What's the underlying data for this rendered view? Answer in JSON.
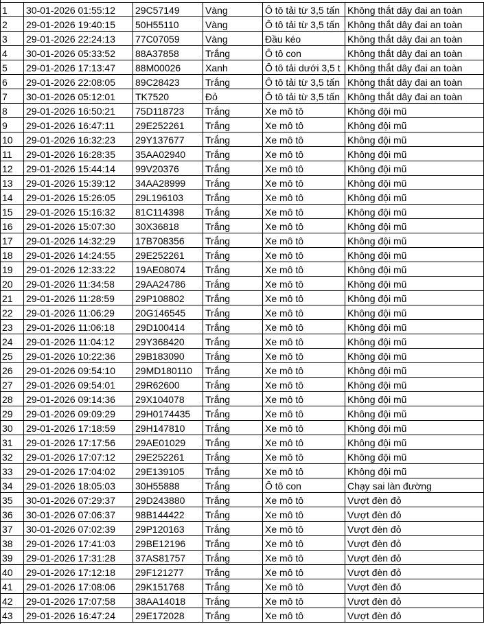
{
  "table": {
    "rows": [
      [
        "1",
        "30-01-2026 01:55:12",
        "29C57149",
        "Vàng",
        "Ô tô tải từ 3,5 tấn",
        "Không thắt dây đai an toàn"
      ],
      [
        "2",
        "29-01-2026 19:40:15",
        "50H55110",
        "Vàng",
        "Ô tô tải từ 3,5 tấn",
        "Không thắt dây đai an toàn"
      ],
      [
        "3",
        "29-01-2026 22:24:13",
        "77C07059",
        "Vàng",
        "Đầu kéo",
        "Không thắt dây đai an toàn"
      ],
      [
        "4",
        "30-01-2026 05:33:52",
        "88A37858",
        "Trắng",
        "Ô tô con",
        "Không thắt dây đai an toàn"
      ],
      [
        "5",
        "29-01-2026 17:13:47",
        "88M00026",
        "Xanh",
        "Ô tô tải dưới 3,5 t",
        "Không thắt dây đai an toàn"
      ],
      [
        "6",
        "29-01-2026 22:08:05",
        "89C28423",
        "Trắng",
        "Ô tô tải từ 3,5 tấn",
        "Không thắt dây đai an toàn"
      ],
      [
        "7",
        "30-01-2026 05:12:01",
        "TK7520",
        "Đỏ",
        "Ô tô tải từ 3,5 tấn",
        "Không thắt dây đai an toàn"
      ],
      [
        "8",
        "29-01-2026 16:50:21",
        "75D118723",
        "Trắng",
        "Xe mô tô",
        "Không đội mũ"
      ],
      [
        "9",
        "29-01-2026 16:47:11",
        "29E252261",
        "Trắng",
        "Xe mô tô",
        "Không đội mũ"
      ],
      [
        "10",
        "29-01-2026 16:32:23",
        "29Y137677",
        "Trắng",
        "Xe mô tô",
        "Không đội mũ"
      ],
      [
        "11",
        "29-01-2026 16:28:35",
        "35AA02940",
        "Trắng",
        "Xe mô tô",
        "Không đội mũ"
      ],
      [
        "12",
        "29-01-2026 15:44:14",
        "99V20376",
        "Trắng",
        "Xe mô tô",
        "Không đội mũ"
      ],
      [
        "13",
        "29-01-2026 15:39:12",
        "34AA28999",
        "Trắng",
        "Xe mô tô",
        "Không đội mũ"
      ],
      [
        "14",
        "29-01-2026 15:26:05",
        "29L196103",
        "Trắng",
        "Xe mô tô",
        "Không đội mũ"
      ],
      [
        "15",
        "29-01-2026 15:16:32",
        "81C114398",
        "Trắng",
        "Xe mô tô",
        "Không đội mũ"
      ],
      [
        "16",
        "29-01-2026 15:07:30",
        "30X36818",
        "Trắng",
        "Xe mô tô",
        "Không đội mũ"
      ],
      [
        "17",
        "29-01-2026 14:32:29",
        "17B708356",
        "Trắng",
        "Xe mô tô",
        "Không đội mũ"
      ],
      [
        "18",
        "29-01-2026 14:24:55",
        "29E252261",
        "Trắng",
        "Xe mô tô",
        "Không đội mũ"
      ],
      [
        "19",
        "29-01-2026 12:33:22",
        "19AE08074",
        "Trắng",
        "Xe mô tô",
        "Không đội mũ"
      ],
      [
        "20",
        "29-01-2026 11:34:58",
        "29AA24786",
        "Trắng",
        "Xe mô tô",
        "Không đội mũ"
      ],
      [
        "21",
        "29-01-2026 11:28:59",
        "29P108802",
        "Trắng",
        "Xe mô tô",
        "Không đội mũ"
      ],
      [
        "22",
        "29-01-2026 11:06:29",
        "20G146545",
        "Trắng",
        "Xe mô tô",
        "Không đội mũ"
      ],
      [
        "23",
        "29-01-2026 11:06:18",
        "29D100414",
        "Trắng",
        "Xe mô tô",
        "Không đội mũ"
      ],
      [
        "24",
        "29-01-2026 11:04:12",
        "29Y368420",
        "Trắng",
        "Xe mô tô",
        "Không đội mũ"
      ],
      [
        "25",
        "29-01-2026 10:22:36",
        "29B183090",
        "Trắng",
        "Xe mô tô",
        "Không đội mũ"
      ],
      [
        "26",
        "29-01-2026 09:54:10",
        "29MD180110",
        "Trắng",
        "Xe mô tô",
        "Không đội mũ"
      ],
      [
        "27",
        "29-01-2026 09:54:01",
        "29R62600",
        "Trắng",
        "Xe mô tô",
        "Không đội mũ"
      ],
      [
        "28",
        "29-01-2026 09:14:36",
        "29X104078",
        "Trắng",
        "Xe mô tô",
        "Không đội mũ"
      ],
      [
        "29",
        "29-01-2026 09:09:29",
        "29H0174435",
        "Trắng",
        "Xe mô tô",
        "Không đội mũ"
      ],
      [
        "30",
        "29-01-2026 17:18:59",
        "29H147810",
        "Trắng",
        "Xe mô tô",
        "Không đội mũ"
      ],
      [
        "31",
        "29-01-2026 17:17:56",
        "29AE01029",
        "Trắng",
        "Xe mô tô",
        "Không đội mũ"
      ],
      [
        "32",
        "29-01-2026 17:07:12",
        "29E252261",
        "Trắng",
        "Xe mô tô",
        "Không đội mũ"
      ],
      [
        "33",
        "29-01-2026 17:04:02",
        "29E139105",
        "Trắng",
        "Xe mô tô",
        "Không đội mũ"
      ],
      [
        "34",
        "29-01-2026 18:05:03",
        "30H55888",
        "Trắng",
        "Ô tô con",
        "Chạy sai làn đường"
      ],
      [
        "35",
        "30-01-2026 07:29:37",
        "29D243880",
        "Trắng",
        "Xe mô tô",
        "Vượt đèn đỏ"
      ],
      [
        "36",
        "30-01-2026 07:06:37",
        "98B144422",
        "Trắng",
        "Xe mô tô",
        "Vượt đèn đỏ"
      ],
      [
        "37",
        "30-01-2026 07:02:39",
        "29P120163",
        "Trắng",
        "Xe mô tô",
        "Vượt đèn đỏ"
      ],
      [
        "38",
        "29-01-2026 17:41:03",
        "29BE12196",
        "Trắng",
        "Xe mô tô",
        "Vượt đèn đỏ"
      ],
      [
        "39",
        "29-01-2026 17:31:28",
        "37AS81757",
        "Trắng",
        "Xe mô tô",
        "Vượt đèn đỏ"
      ],
      [
        "40",
        "29-01-2026 17:12:18",
        "29F121277",
        "Trắng",
        "Xe mô tô",
        "Vượt đèn đỏ"
      ],
      [
        "41",
        "29-01-2026 17:08:06",
        "29K151768",
        "Trắng",
        "Xe mô tô",
        "Vượt đèn đỏ"
      ],
      [
        "42",
        "29-01-2026 17:07:58",
        "38AA14018",
        "Trắng",
        "Xe mô tô",
        "Vượt đèn đỏ"
      ],
      [
        "43",
        "29-01-2026 16:47:24",
        "29E172028",
        "Trắng",
        "Xe mô tô",
        "Vượt đèn đỏ"
      ]
    ]
  }
}
